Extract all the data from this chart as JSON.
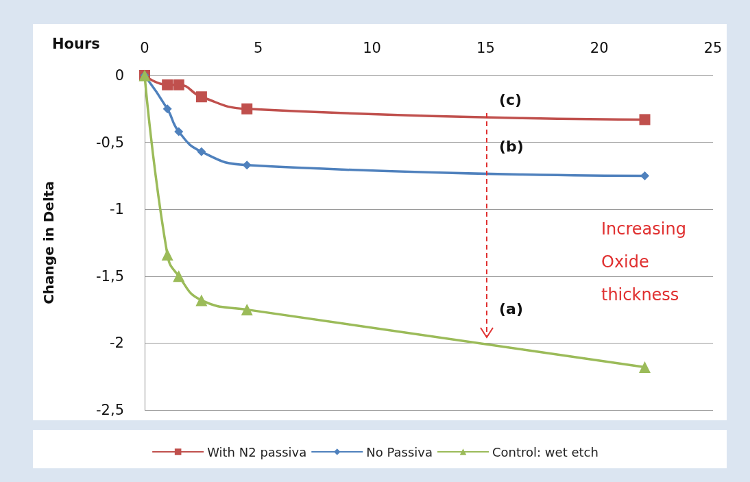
{
  "chart_data": {
    "type": "line",
    "xlabel": "Hours",
    "ylabel": "Change in Delta",
    "xlim": [
      0,
      25
    ],
    "xticks": [
      0,
      5,
      10,
      15,
      20,
      25
    ],
    "ylim": [
      -2.5,
      0
    ],
    "yticks": [
      {
        "value": -2.5,
        "label": "-2,5"
      },
      {
        "value": -2,
        "label": "-2"
      },
      {
        "value": -1.5,
        "label": "-1,5"
      },
      {
        "value": -1,
        "label": "-1"
      },
      {
        "value": -0.5,
        "label": "-0,5"
      },
      {
        "value": 0,
        "label": "0"
      }
    ],
    "grid": "y",
    "legend": "bottom",
    "line_style": "solid",
    "series": [
      {
        "name": "With N2 passiva",
        "color": "#c0504d",
        "marker": "square",
        "x": [
          0,
          1,
          1.5,
          2.5,
          4.5,
          22
        ],
        "values": [
          0,
          -0.07,
          -0.07,
          -0.16,
          -0.25,
          -0.33
        ]
      },
      {
        "name": "No Passiva",
        "color": "#4f81bd",
        "marker": "diamond",
        "x": [
          0,
          1,
          1.5,
          2.5,
          4.5,
          22
        ],
        "values": [
          0,
          -0.25,
          -0.42,
          -0.57,
          -0.67,
          -0.75
        ]
      },
      {
        "name": "Control: wet etch",
        "color": "#9bbb59",
        "marker": "triangle",
        "x": [
          0,
          1,
          1.5,
          2.5,
          4.5,
          22
        ],
        "values": [
          0,
          -1.34,
          -1.5,
          -1.68,
          -1.75,
          -2.18
        ]
      }
    ],
    "annotations": [
      "(c)",
      "(b)",
      "(a)",
      "Increasing\nOxide\nthickness"
    ]
  }
}
